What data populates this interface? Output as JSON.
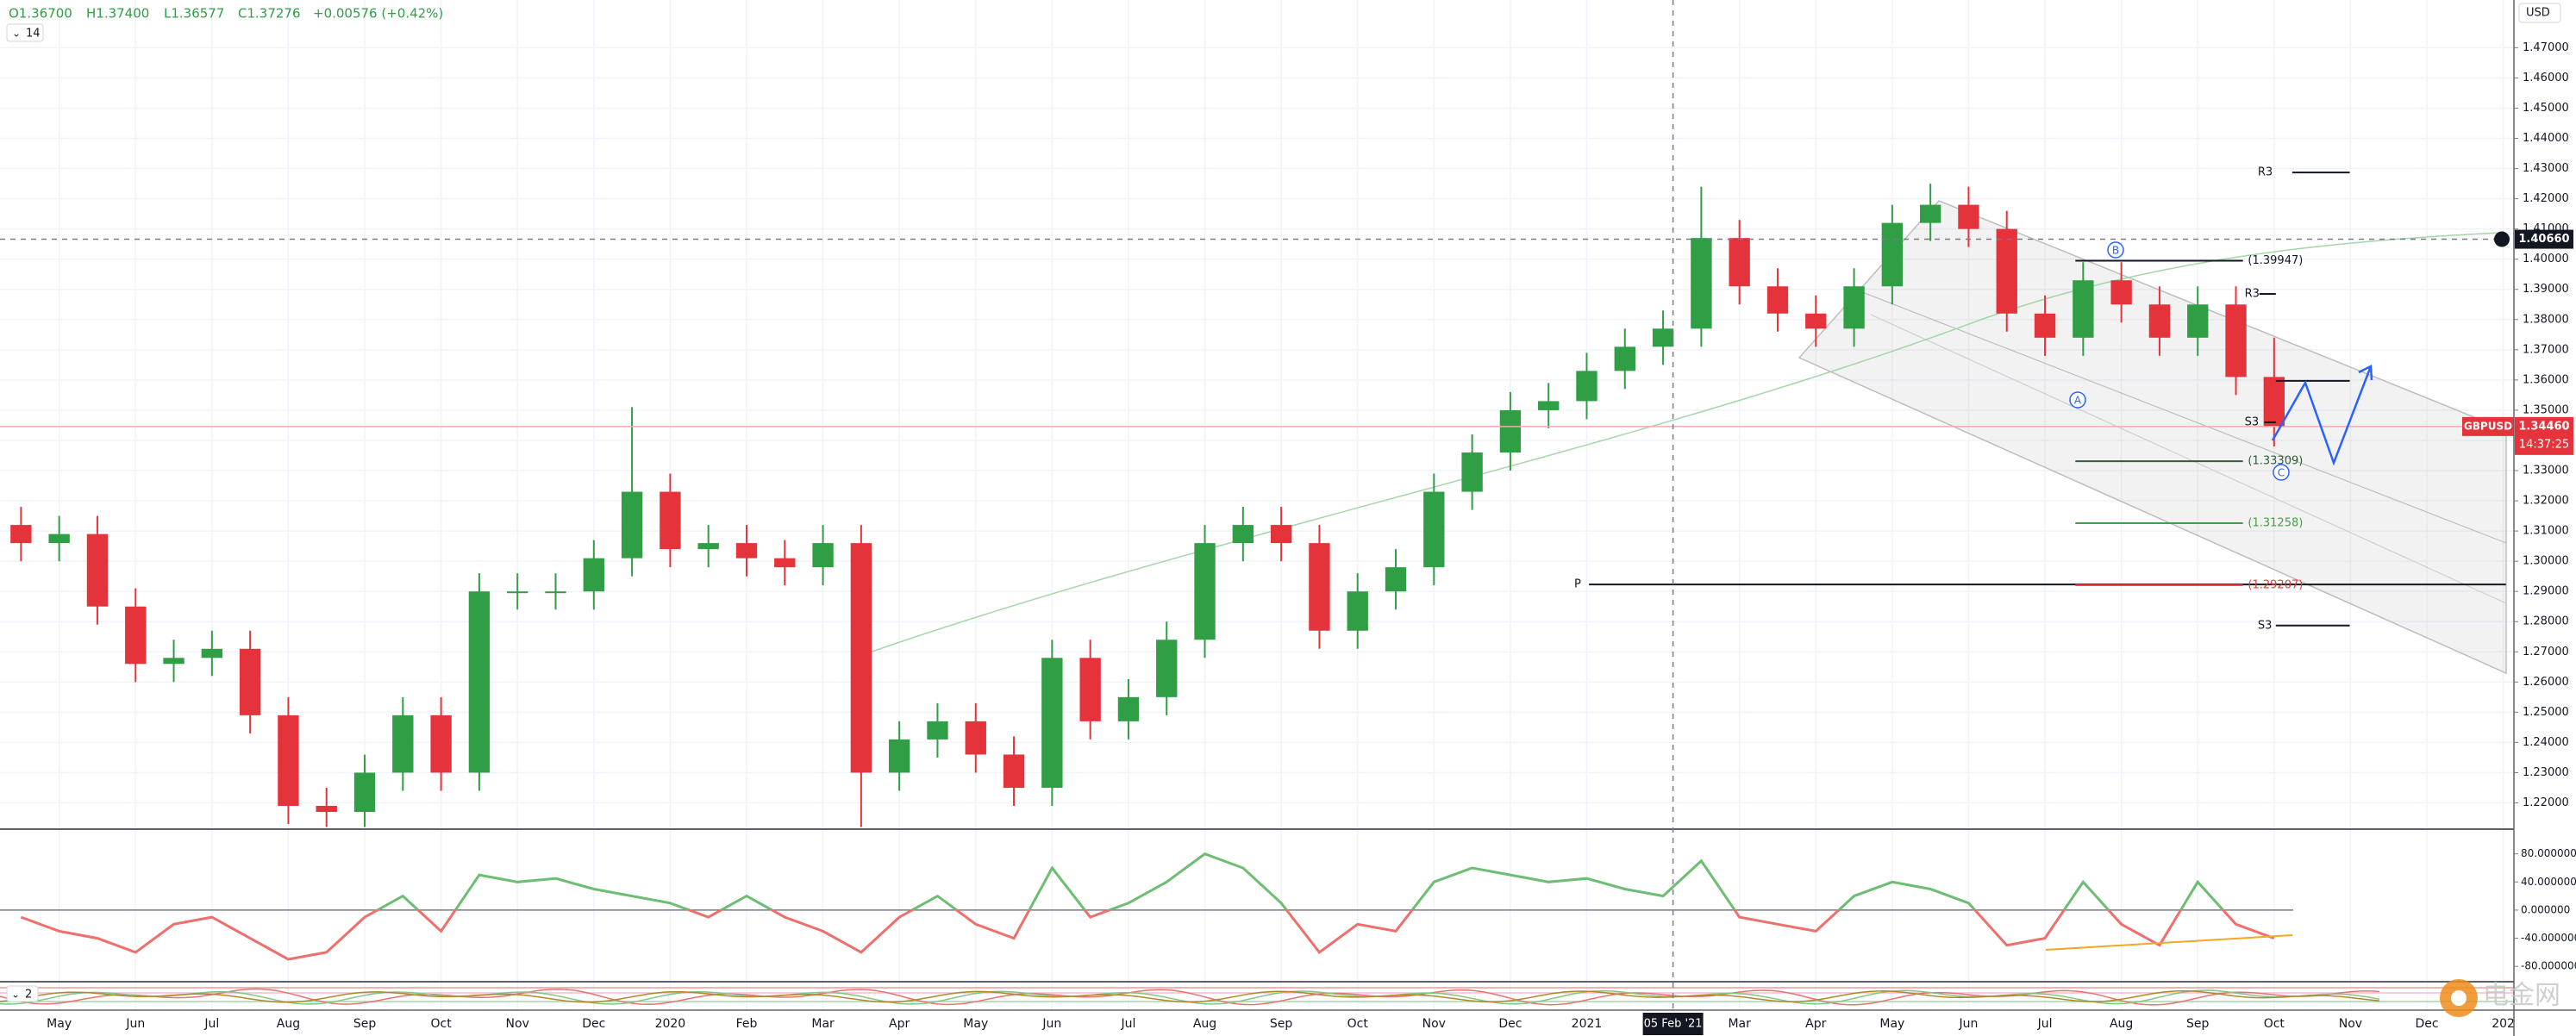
{
  "header": {
    "open": "O1.36700",
    "high": "H1.37400",
    "low": "L1.36577",
    "close": "C1.37276",
    "change": "+0.00576 (+0.42%)",
    "length": "14",
    "currency": "USD",
    "pane3_length": "2"
  },
  "annotations": {
    "waves": [
      "A",
      "B",
      "C"
    ]
  },
  "watermark": "电金网",
  "chart_data": [
    {
      "type": "candlestick",
      "symbol": "GBPUSD",
      "x": [
        -0.5,
        0,
        0.5,
        1,
        1.5,
        2,
        2.5,
        3,
        3.5,
        4,
        4.5,
        5,
        5.5,
        6,
        6.5,
        7,
        7.5,
        8,
        8.5,
        9,
        9.5,
        10,
        10.5,
        11,
        11.5,
        12,
        12.5,
        13,
        13.5,
        14,
        14.5,
        15,
        15.5,
        16,
        16.5,
        17,
        17.5,
        18,
        18.5,
        19,
        19.5,
        20,
        20.5,
        21,
        21.5,
        22,
        22.5,
        23,
        23.5,
        24,
        24.5,
        25,
        25.5,
        26,
        26.5,
        27,
        27.5,
        28,
        28.5,
        29
      ],
      "open": [
        1.312,
        1.306,
        1.309,
        1.285,
        1.266,
        1.268,
        1.271,
        1.249,
        1.219,
        1.217,
        1.23,
        1.249,
        1.23,
        1.29,
        1.29,
        1.29,
        1.301,
        1.323,
        1.304,
        1.306,
        1.301,
        1.298,
        1.306,
        1.23,
        1.241,
        1.247,
        1.236,
        1.225,
        1.268,
        1.247,
        1.255,
        1.274,
        1.306,
        1.312,
        1.306,
        1.277,
        1.29,
        1.298,
        1.323,
        1.336,
        1.35,
        1.353,
        1.363,
        1.371,
        1.377,
        1.407,
        1.391,
        1.382,
        1.377,
        1.391,
        1.412,
        1.418,
        1.41,
        1.382,
        1.374,
        1.393,
        1.385,
        1.374,
        1.385,
        1.361
      ],
      "high": [
        1.318,
        1.315,
        1.315,
        1.291,
        1.274,
        1.277,
        1.277,
        1.255,
        1.225,
        1.236,
        1.255,
        1.255,
        1.296,
        1.296,
        1.296,
        1.307,
        1.351,
        1.329,
        1.312,
        1.312,
        1.307,
        1.312,
        1.312,
        1.247,
        1.253,
        1.253,
        1.242,
        1.274,
        1.274,
        1.261,
        1.28,
        1.312,
        1.318,
        1.318,
        1.312,
        1.296,
        1.304,
        1.329,
        1.342,
        1.356,
        1.359,
        1.369,
        1.377,
        1.383,
        1.424,
        1.413,
        1.397,
        1.388,
        1.397,
        1.418,
        1.425,
        1.424,
        1.416,
        1.388,
        1.399,
        1.399,
        1.391,
        1.391,
        1.391,
        1.374
      ],
      "low": [
        1.3,
        1.3,
        1.279,
        1.26,
        1.26,
        1.262,
        1.243,
        1.213,
        1.212,
        1.212,
        1.224,
        1.224,
        1.224,
        1.284,
        1.284,
        1.284,
        1.295,
        1.298,
        1.298,
        1.295,
        1.292,
        1.292,
        1.212,
        1.224,
        1.235,
        1.23,
        1.219,
        1.219,
        1.241,
        1.241,
        1.249,
        1.268,
        1.3,
        1.3,
        1.271,
        1.271,
        1.284,
        1.292,
        1.317,
        1.33,
        1.344,
        1.347,
        1.357,
        1.365,
        1.371,
        1.385,
        1.376,
        1.371,
        1.371,
        1.385,
        1.406,
        1.404,
        1.376,
        1.368,
        1.368,
        1.379,
        1.368,
        1.368,
        1.355,
        1.338
      ],
      "close": [
        1.306,
        1.309,
        1.285,
        1.266,
        1.268,
        1.271,
        1.249,
        1.219,
        1.217,
        1.23,
        1.249,
        1.23,
        1.29,
        1.29,
        1.29,
        1.301,
        1.323,
        1.304,
        1.306,
        1.301,
        1.298,
        1.306,
        1.23,
        1.241,
        1.247,
        1.236,
        1.225,
        1.268,
        1.247,
        1.255,
        1.274,
        1.306,
        1.312,
        1.306,
        1.277,
        1.29,
        1.298,
        1.323,
        1.336,
        1.35,
        1.353,
        1.363,
        1.371,
        1.377,
        1.407,
        1.391,
        1.382,
        1.377,
        1.391,
        1.412,
        1.418,
        1.41,
        1.382,
        1.374,
        1.393,
        1.385,
        1.374,
        1.385,
        1.361,
        1.3446
      ],
      "up_color": "#2f9e44",
      "down_color": "#e5333b",
      "xlim": [
        -0.775,
        32.14
      ],
      "xticks": [
        {
          "value": 0,
          "label": "May"
        },
        {
          "value": 1,
          "label": "Jun"
        },
        {
          "value": 2,
          "label": "Jul"
        },
        {
          "value": 3,
          "label": "Aug"
        },
        {
          "value": 4,
          "label": "Sep"
        },
        {
          "value": 5,
          "label": "Oct"
        },
        {
          "value": 6,
          "label": "Nov"
        },
        {
          "value": 7,
          "label": "Dec"
        },
        {
          "value": 8,
          "label": "2020"
        },
        {
          "value": 9,
          "label": "Feb"
        },
        {
          "value": 10,
          "label": "Mar"
        },
        {
          "value": 11,
          "label": "Apr"
        },
        {
          "value": 12,
          "label": "May"
        },
        {
          "value": 13,
          "label": "Jun"
        },
        {
          "value": 14,
          "label": "Jul"
        },
        {
          "value": 15,
          "label": "Aug"
        },
        {
          "value": 16,
          "label": "Sep"
        },
        {
          "value": 17,
          "label": "Oct"
        },
        {
          "value": 18,
          "label": "Nov"
        },
        {
          "value": 19,
          "label": "Dec"
        },
        {
          "value": 20,
          "label": "2021"
        },
        {
          "value": 22,
          "label": "Mar"
        },
        {
          "value": 23,
          "label": "Apr"
        },
        {
          "value": 24,
          "label": "May"
        },
        {
          "value": 25,
          "label": "Jun"
        },
        {
          "value": 26,
          "label": "Jul"
        },
        {
          "value": 27,
          "label": "Aug"
        },
        {
          "value": 28,
          "label": "Sep"
        },
        {
          "value": 29,
          "label": "Oct"
        },
        {
          "value": 30,
          "label": "Nov"
        },
        {
          "value": 31,
          "label": "Dec"
        },
        {
          "value": 32,
          "label": "202"
        }
      ],
      "ylim": [
        1.2113,
        1.4858
      ],
      "yticks": [
        {
          "value": 1.22,
          "label": "1.22000"
        },
        {
          "value": 1.23,
          "label": "1.23000"
        },
        {
          "value": 1.24,
          "label": "1.24000"
        },
        {
          "value": 1.25,
          "label": "1.25000"
        },
        {
          "value": 1.26,
          "label": "1.26000"
        },
        {
          "value": 1.27,
          "label": "1.27000"
        },
        {
          "value": 1.28,
          "label": "1.28000"
        },
        {
          "value": 1.29,
          "label": "1.29000"
        },
        {
          "value": 1.3,
          "label": "1.30000"
        },
        {
          "value": 1.31,
          "label": "1.31000"
        },
        {
          "value": 1.32,
          "label": "1.32000"
        },
        {
          "value": 1.33,
          "label": "1.33000"
        },
        {
          "value": 1.34,
          "label": "1.34000"
        },
        {
          "value": 1.35,
          "label": "1.35000"
        },
        {
          "value": 1.36,
          "label": "1.36000"
        },
        {
          "value": 1.37,
          "label": "1.37000"
        },
        {
          "value": 1.38,
          "label": "1.38000"
        },
        {
          "value": 1.39,
          "label": "1.39000"
        },
        {
          "value": 1.4,
          "label": "1.40000"
        },
        {
          "value": 1.41,
          "label": "1.41000"
        },
        {
          "value": 1.42,
          "label": "1.42000"
        },
        {
          "value": 1.43,
          "label": "1.43000"
        },
        {
          "value": 1.44,
          "label": "1.44000"
        },
        {
          "value": 1.45,
          "label": "1.45000"
        },
        {
          "value": 1.46,
          "label": "1.46000"
        },
        {
          "value": 1.47,
          "label": "1.47000"
        }
      ],
      "grid": true,
      "last_price": {
        "value": 1.3446,
        "label": "1.34460"
      },
      "countdown": "14:37:25",
      "crosshair": {
        "x": {
          "value": 21.13,
          "label": "05 Feb '21"
        },
        "y": {
          "value": 1.4066,
          "label": "1.40660"
        }
      },
      "levels": [
        {
          "label": "R3",
          "value": 1.4287,
          "color": "#131722"
        },
        {
          "label": "(1.39947)",
          "value": 1.39947,
          "color": "#131722"
        },
        {
          "label": "R3",
          "value": 1.3885,
          "color": "#131722"
        },
        {
          "value": 1.3597,
          "color": "#131722"
        },
        {
          "label": "S3",
          "value": 1.346,
          "color": "#131722"
        },
        {
          "label": "(1.33309)",
          "value": 1.33309,
          "color": "#2e5e3a"
        },
        {
          "label": "(1.31258)",
          "value": 1.31258,
          "color": "#43a047"
        },
        {
          "label": "P",
          "value": 1.2923,
          "color": "#131722"
        },
        {
          "label": "(1.29207)",
          "value": 1.29207,
          "color": "#e53935"
        },
        {
          "label": "S3",
          "value": 1.2787,
          "color": "#131722"
        }
      ]
    },
    {
      "type": "line",
      "x": [
        -0.5,
        0,
        0.5,
        1,
        1.5,
        2,
        2.5,
        3,
        3.5,
        4,
        4.5,
        5,
        5.5,
        6,
        6.5,
        7,
        7.5,
        8,
        8.5,
        9,
        9.5,
        10,
        10.5,
        11,
        11.5,
        12,
        12.5,
        13,
        13.5,
        14,
        14.5,
        15,
        15.5,
        16,
        16.5,
        17,
        17.5,
        18,
        18.5,
        19,
        19.5,
        20,
        20.5,
        21,
        21.5,
        22,
        22.5,
        23,
        23.5,
        24,
        24.5,
        25,
        25.5,
        26,
        26.5,
        27,
        27.5,
        28,
        28.5,
        29
      ],
      "series": [
        {
          "values": [
            -10,
            -30,
            -40,
            -60,
            -20,
            -10,
            -40,
            -70,
            -60,
            -10,
            20,
            -30,
            50,
            40,
            45,
            30,
            20,
            10,
            -10,
            20,
            -10,
            -30,
            -60,
            -10,
            20,
            -20,
            -40,
            60,
            -10,
            10,
            40,
            80,
            60,
            10,
            -60,
            -20,
            -30,
            40,
            60,
            50,
            40,
            45,
            30,
            20,
            70,
            -10,
            -20,
            -30,
            20,
            40,
            30,
            10,
            -50,
            -40,
            40,
            -20,
            -50,
            40,
            -20,
            -40
          ],
          "color_above": "#6dbd72",
          "color_below": "#ee6f6b"
        }
      ],
      "ylim": [
        -100.6,
        112.7
      ],
      "yticks": [
        {
          "value": 80,
          "label": "80.000000"
        },
        {
          "value": 40,
          "label": "40.000000"
        },
        {
          "value": 0,
          "label": "0.000000"
        },
        {
          "value": -40,
          "label": "-40.000000"
        },
        {
          "value": -80,
          "label": "-80.000000"
        }
      ]
    }
  ]
}
